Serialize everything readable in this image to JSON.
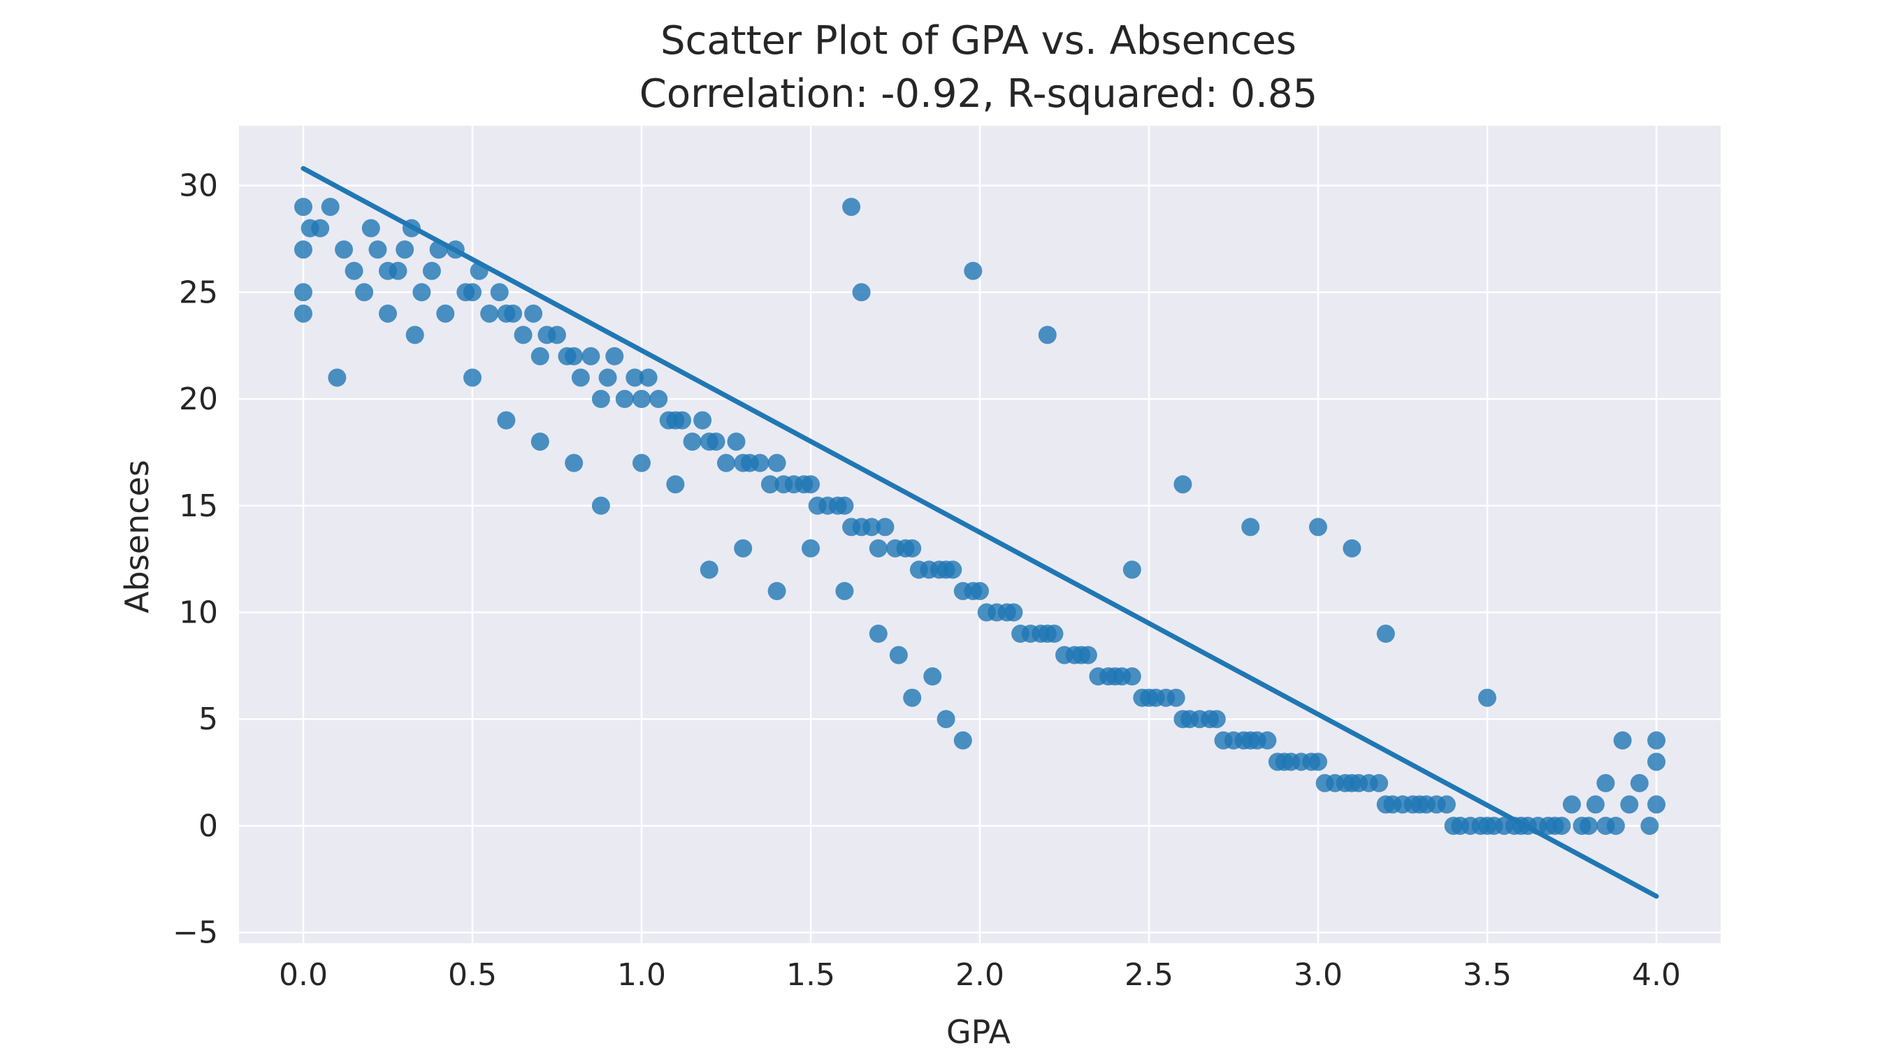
{
  "chart_data": {
    "type": "scatter",
    "title": "Scatter Plot of GPA vs. Absences",
    "subtitle": "Correlation: -0.92, R-squared: 0.85",
    "xlabel": "GPA",
    "ylabel": "Absences",
    "xlim": [
      -0.19,
      4.19
    ],
    "ylim": [
      -5.5,
      32.8
    ],
    "xticks": [
      0.0,
      0.5,
      1.0,
      1.5,
      2.0,
      2.5,
      3.0,
      3.5,
      4.0
    ],
    "xtick_labels": [
      "0.0",
      "0.5",
      "1.0",
      "1.5",
      "2.0",
      "2.5",
      "3.0",
      "3.5",
      "4.0"
    ],
    "yticks": [
      -5,
      0,
      5,
      10,
      15,
      20,
      25,
      30
    ],
    "ytick_labels": [
      "−5",
      "0",
      "5",
      "10",
      "15",
      "20",
      "25",
      "30"
    ],
    "grid": true,
    "background": "#eaeaf2",
    "point_color": "#1f77b4",
    "trend_line": {
      "x": [
        0.0,
        4.0
      ],
      "y": [
        30.8,
        -3.3
      ]
    },
    "series": [
      {
        "x": [
          0.0,
          0.0,
          0.0,
          0.0,
          0.02,
          0.05,
          0.08,
          0.12,
          0.15,
          0.18,
          0.2,
          0.22,
          0.25,
          0.28,
          0.3,
          0.32,
          0.35,
          0.38,
          0.4,
          0.42,
          0.45,
          0.48,
          0.5,
          0.52,
          0.55,
          0.58,
          0.6,
          0.62,
          0.65,
          0.68,
          0.7,
          0.72,
          0.75,
          0.78,
          0.8,
          0.82,
          0.85,
          0.88,
          0.9,
          0.92,
          0.95,
          0.98,
          1.0,
          1.02,
          1.05,
          1.08,
          1.1,
          1.12,
          1.15,
          1.18,
          1.2,
          1.22,
          1.25,
          1.28,
          1.3,
          1.32,
          1.35,
          1.38,
          1.4,
          1.42,
          1.45,
          1.48,
          1.5,
          1.52,
          1.55,
          1.58,
          1.6,
          1.62,
          1.65,
          1.68,
          1.7,
          1.72,
          1.75,
          1.78,
          1.8,
          1.82,
          1.85,
          1.88,
          1.9,
          1.92,
          1.95,
          1.98,
          2.0,
          2.02,
          2.05,
          2.08,
          2.1,
          2.12,
          2.15,
          2.18,
          2.2,
          2.22,
          2.25,
          2.28,
          2.3,
          2.32,
          2.35,
          2.38,
          2.4,
          2.42,
          2.45,
          2.48,
          2.5,
          2.52,
          2.55,
          2.58,
          2.6,
          2.62,
          2.65,
          2.68,
          2.7,
          2.72,
          2.75,
          2.78,
          2.8,
          2.82,
          2.85,
          2.88,
          2.9,
          2.92,
          2.95,
          2.98,
          3.0,
          3.02,
          3.05,
          3.08,
          3.1,
          3.12,
          3.15,
          3.18,
          3.2,
          3.22,
          3.25,
          3.28,
          3.3,
          3.32,
          3.35,
          3.38,
          3.4,
          3.42,
          3.45,
          3.48,
          3.5,
          3.52,
          3.55,
          3.58,
          3.6,
          3.62,
          3.65,
          3.68,
          3.7,
          3.72,
          3.75,
          3.78,
          3.8,
          3.82,
          3.85,
          3.88,
          3.9,
          3.92,
          3.95,
          3.98,
          4.0,
          4.0,
          4.0,
          0.1,
          0.25,
          0.33,
          0.5,
          0.6,
          0.7,
          0.8,
          0.88,
          1.0,
          1.1,
          1.2,
          1.3,
          1.4,
          1.5,
          1.6,
          1.62,
          1.65,
          1.7,
          1.76,
          1.8,
          1.86,
          1.9,
          1.95,
          1.98,
          2.2,
          2.45,
          2.6,
          2.8,
          3.0,
          3.1,
          3.2,
          3.5,
          3.85
        ],
        "y": [
          29,
          27,
          25,
          24,
          28,
          28,
          29,
          27,
          26,
          25,
          28,
          27,
          26,
          26,
          27,
          28,
          25,
          26,
          27,
          24,
          27,
          25,
          25,
          26,
          24,
          25,
          24,
          24,
          23,
          24,
          22,
          23,
          23,
          22,
          22,
          21,
          22,
          20,
          21,
          22,
          20,
          21,
          20,
          21,
          20,
          19,
          19,
          19,
          18,
          19,
          18,
          18,
          17,
          18,
          17,
          17,
          17,
          16,
          17,
          16,
          16,
          16,
          16,
          15,
          15,
          15,
          15,
          14,
          14,
          14,
          13,
          14,
          13,
          13,
          13,
          12,
          12,
          12,
          12,
          12,
          11,
          11,
          11,
          10,
          10,
          10,
          10,
          9,
          9,
          9,
          9,
          9,
          8,
          8,
          8,
          8,
          7,
          7,
          7,
          7,
          7,
          6,
          6,
          6,
          6,
          6,
          5,
          5,
          5,
          5,
          5,
          4,
          4,
          4,
          4,
          4,
          4,
          3,
          3,
          3,
          3,
          3,
          3,
          2,
          2,
          2,
          2,
          2,
          2,
          2,
          1,
          1,
          1,
          1,
          1,
          1,
          1,
          1,
          0,
          0,
          0,
          0,
          0,
          0,
          0,
          0,
          0,
          0,
          0,
          0,
          0,
          0,
          1,
          0,
          0,
          1,
          0,
          0,
          4,
          1,
          2,
          0,
          4,
          3,
          1,
          21,
          24,
          23,
          21,
          19,
          18,
          17,
          15,
          17,
          16,
          12,
          13,
          11,
          13,
          11,
          29,
          25,
          9,
          8,
          6,
          7,
          5,
          4,
          26,
          23,
          12,
          16,
          14,
          14,
          13,
          9,
          6,
          2
        ],
        "name": ""
      }
    ]
  }
}
